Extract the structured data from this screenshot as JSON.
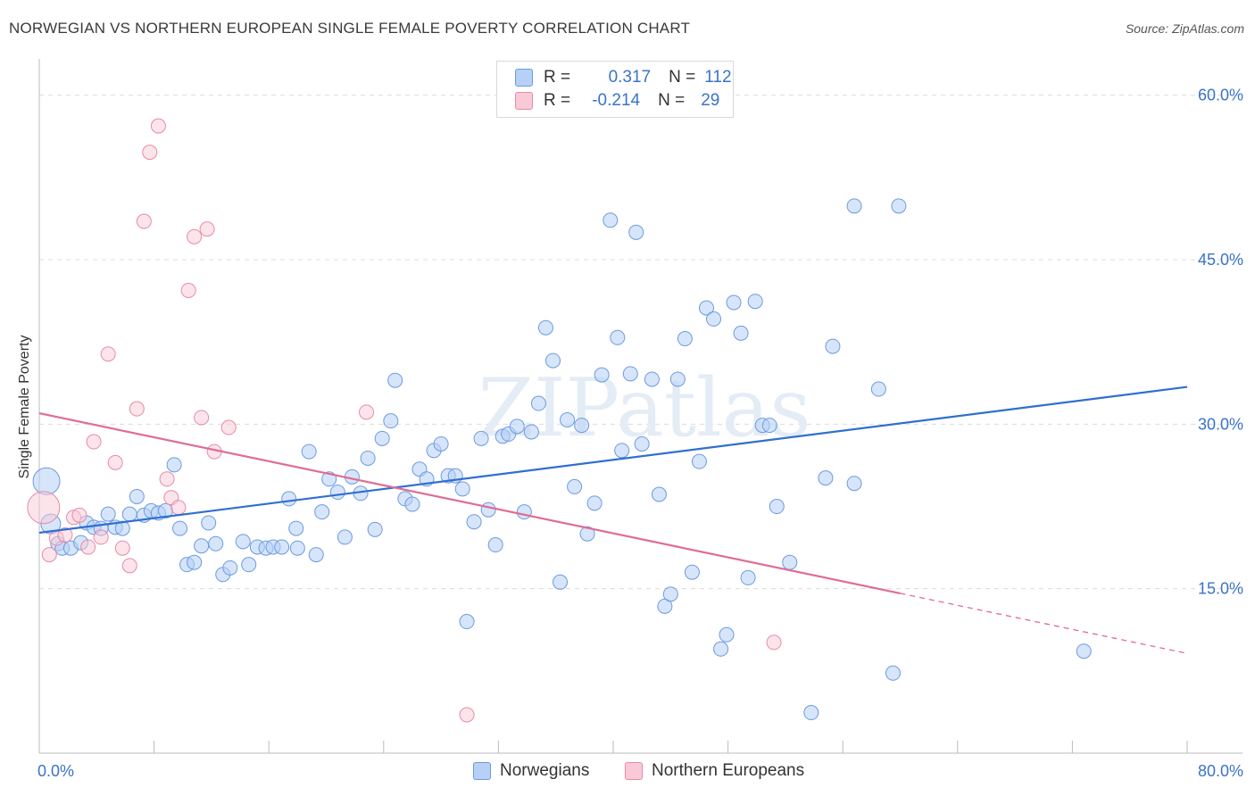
{
  "title": "NORWEGIAN VS NORTHERN EUROPEAN SINGLE FEMALE POVERTY CORRELATION CHART",
  "source": "Source: ZipAtlas.com",
  "stats": [
    {
      "r_label": "R =",
      "r_value": "0.317",
      "n_label": "N =",
      "n_value": "112",
      "color": "#6b9be0"
    },
    {
      "r_label": "R =",
      "r_value": "-0.214",
      "n_label": "N =",
      "n_value": "29",
      "color": "#e88aa8"
    }
  ],
  "legend": [
    {
      "name": "Norwegians"
    },
    {
      "name": "Northern Europeans"
    }
  ],
  "chart_data": {
    "type": "scatter",
    "title": "NORWEGIAN VS NORTHERN EUROPEAN SINGLE FEMALE POVERTY CORRELATION CHART",
    "xlabel": "",
    "ylabel": "Single Female Poverty",
    "xlim": [
      0,
      80
    ],
    "ylim": [
      0,
      62.5
    ],
    "x_tick_labels": [
      "0.0%",
      "80.0%"
    ],
    "y_tick_labels": [
      "15.0%",
      "30.0%",
      "45.0%",
      "60.0%"
    ],
    "y_ticks": [
      15,
      30,
      45,
      60
    ],
    "grid": true,
    "watermark": "ZIPatlas",
    "colors": {
      "blue_stroke": "#6b9be0",
      "blue_fill": "#b7d0f5",
      "pink_stroke": "#e88aa8",
      "pink_fill": "#f9c9d8",
      "blue_line": "#2f6fd0",
      "pink_line": "#e06c93",
      "tick_text": "#3a73c9"
    },
    "series": [
      {
        "name": "Norwegians",
        "trend": {
          "x0": 0,
          "y0": 20.1,
          "x1": 80,
          "y1": 33.4
        },
        "points": [
          [
            0.5,
            24.8
          ],
          [
            0.8,
            20.9
          ],
          [
            1.3,
            19.1
          ],
          [
            1.6,
            18.7
          ],
          [
            2.2,
            18.7
          ],
          [
            2.9,
            19.2
          ],
          [
            3.3,
            21.0
          ],
          [
            3.8,
            20.6
          ],
          [
            4.3,
            20.5
          ],
          [
            4.8,
            21.8
          ],
          [
            5.3,
            20.6
          ],
          [
            5.8,
            20.5
          ],
          [
            6.3,
            21.8
          ],
          [
            6.8,
            23.4
          ],
          [
            7.3,
            21.7
          ],
          [
            7.8,
            22.1
          ],
          [
            8.3,
            21.9
          ],
          [
            8.8,
            22.1
          ],
          [
            9.4,
            26.3
          ],
          [
            9.8,
            20.5
          ],
          [
            10.3,
            17.2
          ],
          [
            10.8,
            17.4
          ],
          [
            11.3,
            18.9
          ],
          [
            11.8,
            21.0
          ],
          [
            12.3,
            19.1
          ],
          [
            12.8,
            16.3
          ],
          [
            13.3,
            16.9
          ],
          [
            14.2,
            19.3
          ],
          [
            14.6,
            17.2
          ],
          [
            15.2,
            18.8
          ],
          [
            15.8,
            18.7
          ],
          [
            16.3,
            18.8
          ],
          [
            16.9,
            18.8
          ],
          [
            17.4,
            23.2
          ],
          [
            17.9,
            20.5
          ],
          [
            18.0,
            18.7
          ],
          [
            18.8,
            27.5
          ],
          [
            19.3,
            18.1
          ],
          [
            19.7,
            22.0
          ],
          [
            20.2,
            25.0
          ],
          [
            20.8,
            23.8
          ],
          [
            21.3,
            19.7
          ],
          [
            21.8,
            25.2
          ],
          [
            22.4,
            23.7
          ],
          [
            22.9,
            26.9
          ],
          [
            23.4,
            20.4
          ],
          [
            23.9,
            28.7
          ],
          [
            24.5,
            30.3
          ],
          [
            24.8,
            34.0
          ],
          [
            25.5,
            23.2
          ],
          [
            26.0,
            22.7
          ],
          [
            26.5,
            25.9
          ],
          [
            27.0,
            25.0
          ],
          [
            27.5,
            27.6
          ],
          [
            28.0,
            28.2
          ],
          [
            28.5,
            25.3
          ],
          [
            29.0,
            25.3
          ],
          [
            29.5,
            24.1
          ],
          [
            29.8,
            12.0
          ],
          [
            30.3,
            21.1
          ],
          [
            30.8,
            28.7
          ],
          [
            31.3,
            22.2
          ],
          [
            31.8,
            19.0
          ],
          [
            32.3,
            28.9
          ],
          [
            32.7,
            29.1
          ],
          [
            33.3,
            29.8
          ],
          [
            33.8,
            22.0
          ],
          [
            34.3,
            29.3
          ],
          [
            34.8,
            31.9
          ],
          [
            35.3,
            38.8
          ],
          [
            35.8,
            35.8
          ],
          [
            36.3,
            15.6
          ],
          [
            36.8,
            30.4
          ],
          [
            37.3,
            24.3
          ],
          [
            37.8,
            29.9
          ],
          [
            38.2,
            20.0
          ],
          [
            38.7,
            22.8
          ],
          [
            39.2,
            34.5
          ],
          [
            39.8,
            48.6
          ],
          [
            40.3,
            37.9
          ],
          [
            40.6,
            27.6
          ],
          [
            41.2,
            34.6
          ],
          [
            41.6,
            47.5
          ],
          [
            42.0,
            28.2
          ],
          [
            42.7,
            34.1
          ],
          [
            43.2,
            23.6
          ],
          [
            43.6,
            13.4
          ],
          [
            44.0,
            14.5
          ],
          [
            44.5,
            34.1
          ],
          [
            45.0,
            37.8
          ],
          [
            45.5,
            16.5
          ],
          [
            46.0,
            26.6
          ],
          [
            46.5,
            40.6
          ],
          [
            47.0,
            39.6
          ],
          [
            47.5,
            9.5
          ],
          [
            47.9,
            10.8
          ],
          [
            48.4,
            41.1
          ],
          [
            48.9,
            38.3
          ],
          [
            49.4,
            16.0
          ],
          [
            49.9,
            41.2
          ],
          [
            50.4,
            29.9
          ],
          [
            50.9,
            29.9
          ],
          [
            51.4,
            22.5
          ],
          [
            52.3,
            17.4
          ],
          [
            53.8,
            3.7
          ],
          [
            54.8,
            25.1
          ],
          [
            55.3,
            37.1
          ],
          [
            56.8,
            49.9
          ],
          [
            56.8,
            24.6
          ],
          [
            58.5,
            33.2
          ],
          [
            59.5,
            7.3
          ],
          [
            59.9,
            49.9
          ],
          [
            72.8,
            9.3
          ]
        ]
      },
      {
        "name": "Northern Europeans",
        "trend": {
          "x0": 0,
          "y0": 31.0,
          "x1": 80,
          "y1": 9.1,
          "solid_until_x": 60
        },
        "points": [
          [
            0.3,
            22.4
          ],
          [
            0.7,
            18.1
          ],
          [
            1.2,
            19.6
          ],
          [
            1.8,
            19.9
          ],
          [
            2.4,
            21.5
          ],
          [
            2.8,
            21.7
          ],
          [
            3.4,
            18.8
          ],
          [
            3.8,
            28.4
          ],
          [
            4.3,
            19.7
          ],
          [
            4.8,
            36.4
          ],
          [
            5.3,
            26.5
          ],
          [
            5.8,
            18.7
          ],
          [
            6.3,
            17.1
          ],
          [
            6.8,
            31.4
          ],
          [
            7.3,
            48.5
          ],
          [
            7.7,
            54.8
          ],
          [
            8.3,
            57.2
          ],
          [
            8.9,
            25.0
          ],
          [
            9.2,
            23.3
          ],
          [
            9.7,
            22.4
          ],
          [
            10.4,
            42.2
          ],
          [
            10.8,
            47.1
          ],
          [
            11.3,
            30.6
          ],
          [
            11.7,
            47.8
          ],
          [
            12.2,
            27.5
          ],
          [
            13.2,
            29.7
          ],
          [
            22.8,
            31.1
          ],
          [
            29.8,
            3.5
          ],
          [
            51.2,
            10.1
          ]
        ]
      }
    ]
  }
}
